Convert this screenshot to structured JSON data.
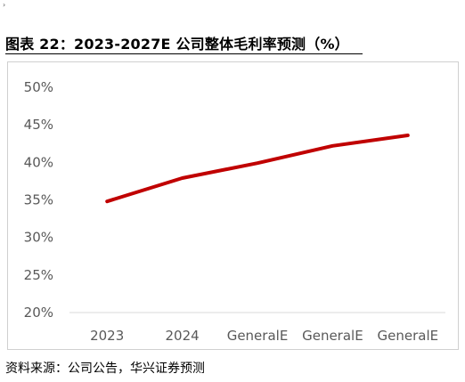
{
  "page_mark": "›",
  "title": "图表 22：2023-2027E 公司整体毛利率预测（%）",
  "source": "资料来源：公司公告，华兴证券预测",
  "chart_data": {
    "type": "line",
    "title": "图表 22：2023-2027E 公司整体毛利率预测（%）",
    "xlabel": "",
    "ylabel": "",
    "categories": [
      "2023",
      "2024",
      "GeneralE",
      "GeneralE",
      "GeneralE"
    ],
    "series": [
      {
        "values": [
          0.348,
          0.379,
          0.399,
          0.422,
          0.436
        ],
        "color": "#c00000"
      }
    ],
    "yticks": [
      "20%",
      "25%",
      "30%",
      "35%",
      "40%",
      "45%",
      "50%"
    ],
    "ylim": [
      0.2,
      0.5
    ],
    "grid": false,
    "legend": "none"
  }
}
